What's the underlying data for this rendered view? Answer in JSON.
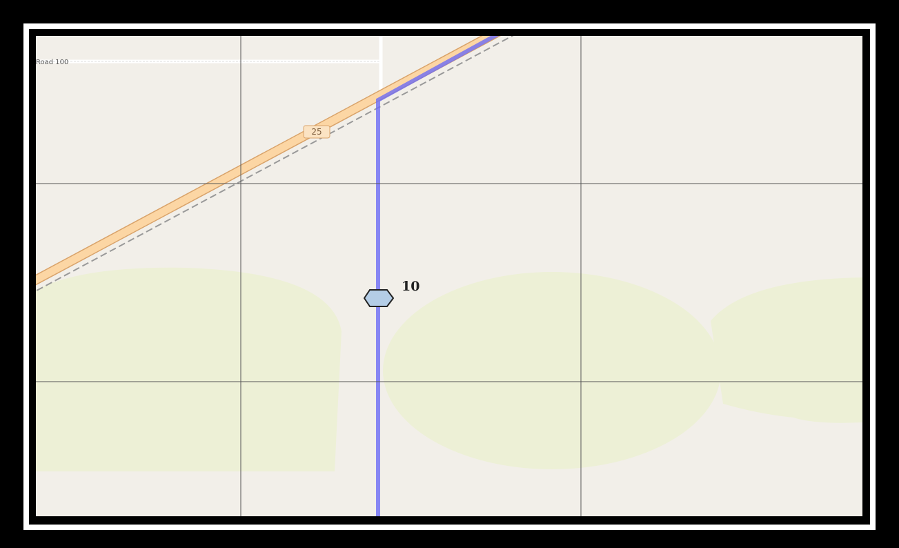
{
  "map": {
    "road_label": "Road 100",
    "route_shield": "25",
    "marker_label": "10"
  }
}
